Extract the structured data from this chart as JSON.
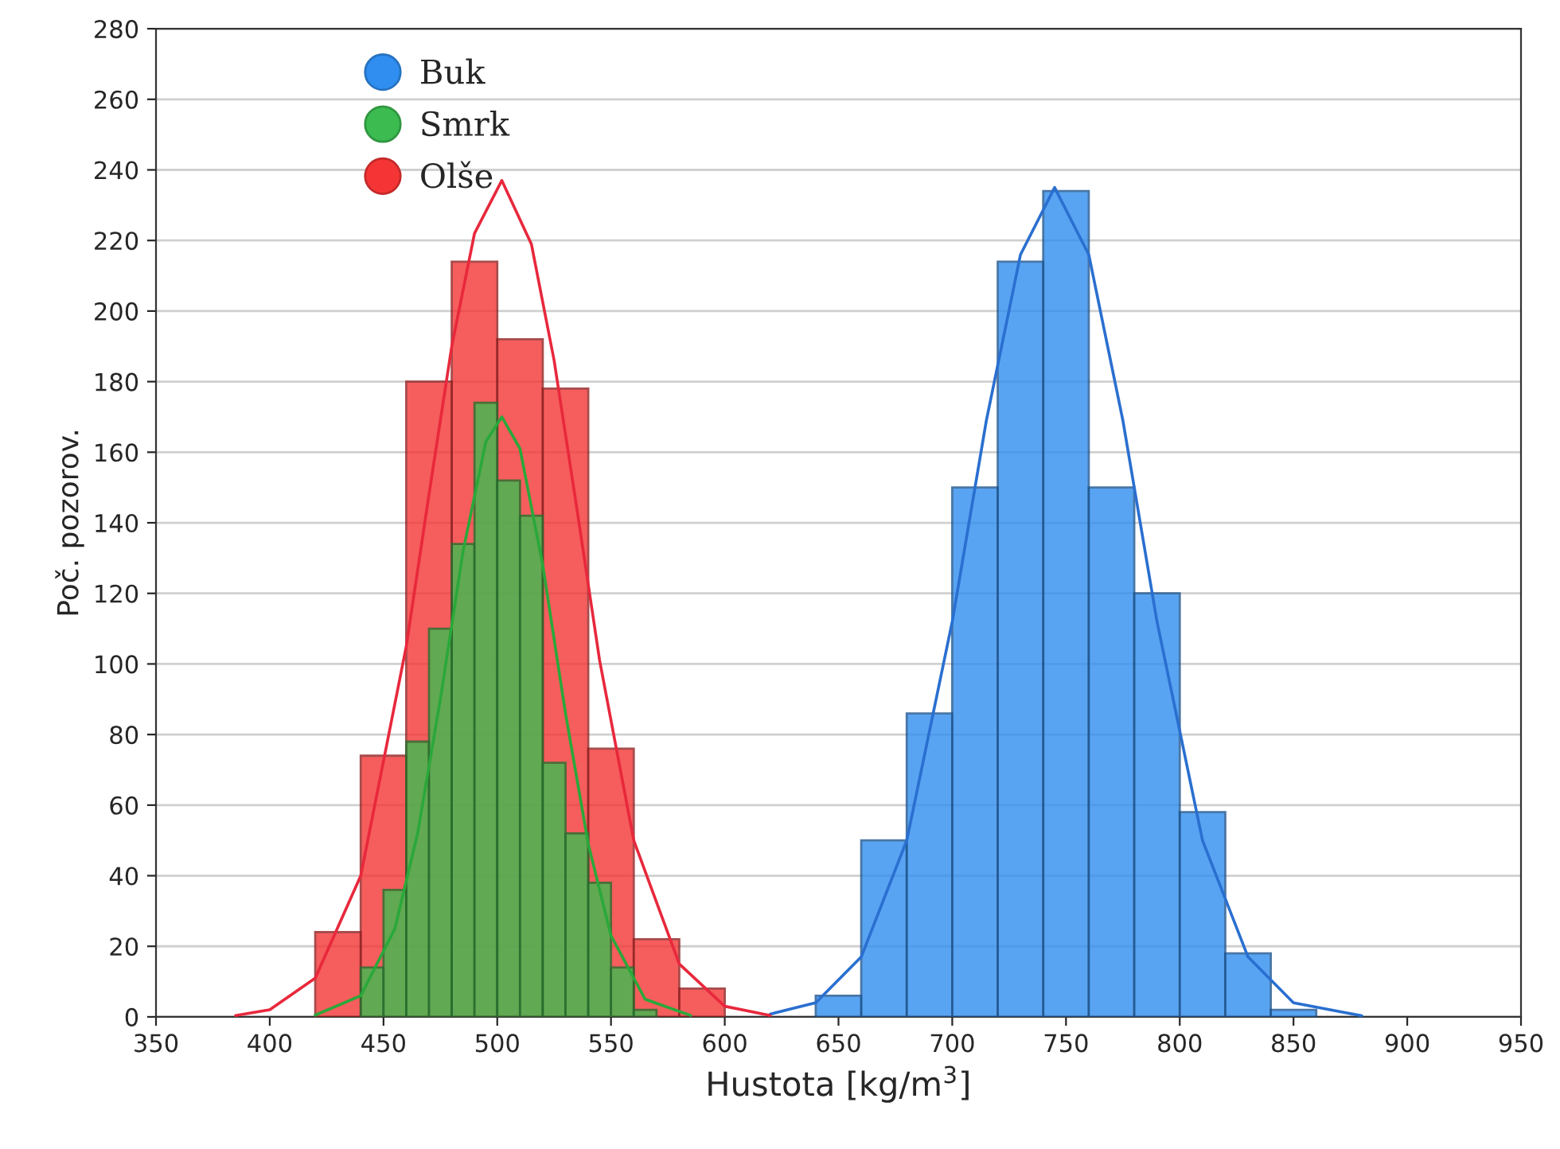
{
  "chart_data": {
    "type": "histogram",
    "xlabel": "Hustota [kg/m$^{3}$]",
    "ylabel": "Poč. pozorov.",
    "series": [
      {
        "name": "Buk",
        "color": "#2f8ef0",
        "bins": [
          640,
          660,
          680,
          700,
          720,
          740,
          760,
          780,
          800,
          820,
          840,
          860
        ],
        "values": [
          6,
          50,
          86,
          150,
          214,
          234,
          150,
          120,
          58,
          18,
          2
        ]
      },
      {
        "name": "Smrk",
        "color": "#3cbc50",
        "bins": [
          440,
          450,
          460,
          470,
          480,
          490,
          500,
          510,
          520,
          530,
          540,
          550,
          560,
          570
        ],
        "values": [
          14,
          36,
          78,
          110,
          134,
          174,
          152,
          142,
          72,
          52,
          38,
          14,
          2
        ]
      },
      {
        "name": "Olše",
        "color": "#f53535",
        "bins": [
          420,
          440,
          460,
          480,
          500,
          520,
          540,
          560,
          580,
          600
        ],
        "values": [
          24,
          74,
          180,
          214,
          192,
          178,
          76,
          22,
          8
        ]
      },
      {
        "type": "line",
        "color": "#2a6fd0",
        "x": [
          620,
          640,
          660,
          680,
          700,
          715,
          730,
          745,
          760,
          775,
          790,
          810,
          830,
          850,
          880
        ],
        "values": [
          0.8,
          4,
          17,
          50,
          112,
          169,
          216,
          235,
          216,
          169,
          112,
          50,
          17,
          4,
          0.3
        ]
      },
      {
        "type": "line",
        "color": "#2aa83a",
        "x": [
          420,
          440,
          455,
          465,
          475,
          485,
          495,
          502,
          510,
          520,
          530,
          540,
          550,
          565,
          585
        ],
        "values": [
          0.5,
          6,
          25,
          52,
          90,
          132,
          163,
          170,
          161,
          128,
          86,
          49,
          23,
          5,
          0.4
        ]
      },
      {
        "type": "line",
        "color": "#e8283c",
        "x": [
          385,
          400,
          420,
          440,
          460,
          470,
          480,
          490,
          502,
          515,
          525,
          535,
          545,
          560,
          580,
          600,
          620
        ],
        "values": [
          0.4,
          2,
          11,
          40,
          105,
          148,
          190,
          222,
          237,
          219,
          186,
          144,
          101,
          50,
          15,
          3,
          0.4
        ]
      }
    ],
    "xlim": [
      350,
      950
    ],
    "xticks": [
      350,
      400,
      450,
      500,
      550,
      600,
      650,
      700,
      750,
      800,
      850,
      900,
      950
    ],
    "ylim": [
      0,
      280
    ],
    "yticks": [
      0,
      20,
      40,
      60,
      80,
      100,
      120,
      140,
      160,
      180,
      200,
      220,
      240,
      260,
      280
    ],
    "grid": "y",
    "legend": "top left"
  }
}
